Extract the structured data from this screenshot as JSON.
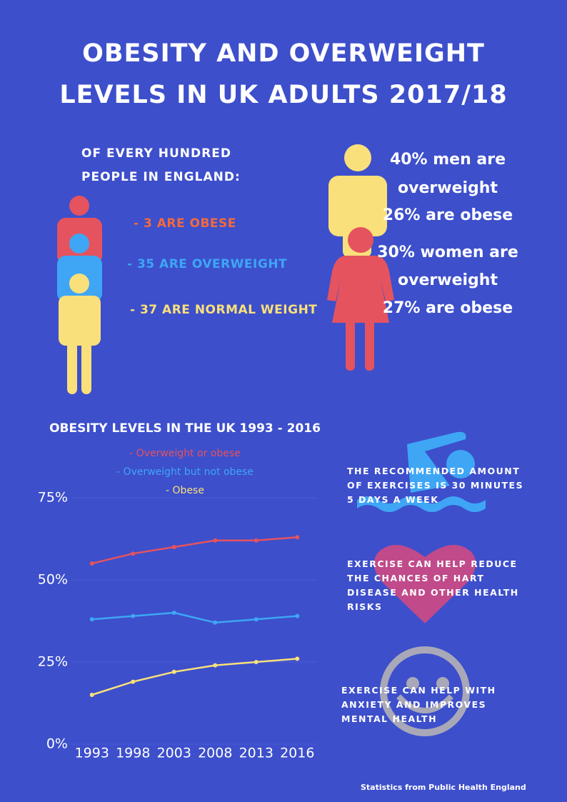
{
  "header": {
    "title": [
      "OBESITY AND OVERWEIGHT",
      "LEVELS IN UK ADULTS 2017/18"
    ]
  },
  "england": {
    "heading": [
      "OF EVERY HUNDRED",
      "PEOPLE IN ENGLAND:"
    ],
    "items": [
      "- 3 ARE OBESE",
      "- 35 ARE OVERWEIGHT",
      "- 37 ARE NORMAL WEIGHT"
    ]
  },
  "gender": {
    "men": [
      "40% men are",
      "overweight",
      "26% are obese"
    ],
    "women": [
      "30% women are",
      "overweight",
      "27% are obese"
    ]
  },
  "chart_data": {
    "type": "line",
    "title": "OBESITY LEVELS IN THE UK 1993 - 2016",
    "categories": [
      "1993",
      "1998",
      "2003",
      "2008",
      "2013",
      "2016"
    ],
    "series": [
      {
        "name": "- Overweight or obese",
        "color": "#e5535f",
        "values": [
          55,
          58,
          60,
          62,
          62,
          63
        ]
      },
      {
        "name": "- Overweight but not obese",
        "color": "#3ea6f5",
        "values": [
          38,
          39,
          40,
          37,
          38,
          39
        ]
      },
      {
        "name": "- Obese",
        "color": "#f9e07a",
        "values": [
          15,
          19,
          22,
          24,
          25,
          26
        ]
      }
    ],
    "ylim": [
      0,
      75
    ],
    "yticks": [
      {
        "value": 0,
        "label": "0%"
      },
      {
        "value": 25,
        "label": "25%"
      },
      {
        "value": 50,
        "label": "50%"
      },
      {
        "value": 75,
        "label": "75%"
      }
    ],
    "grid": true
  },
  "tips": [
    "THE RECOMMENDED AMOUNT OF EXERCISES IS 30 MINUTES 5 DAYS A WEEK",
    "EXERCISE CAN HELP REDUCE THE CHANCES OF HART DISEASE AND OTHER HEALTH RISKS",
    "EXERCISE CAN HELP WITH ANXIETY AND IMPROVES MENTAL HEALTH"
  ],
  "footer": "Statistics from Public Health England"
}
